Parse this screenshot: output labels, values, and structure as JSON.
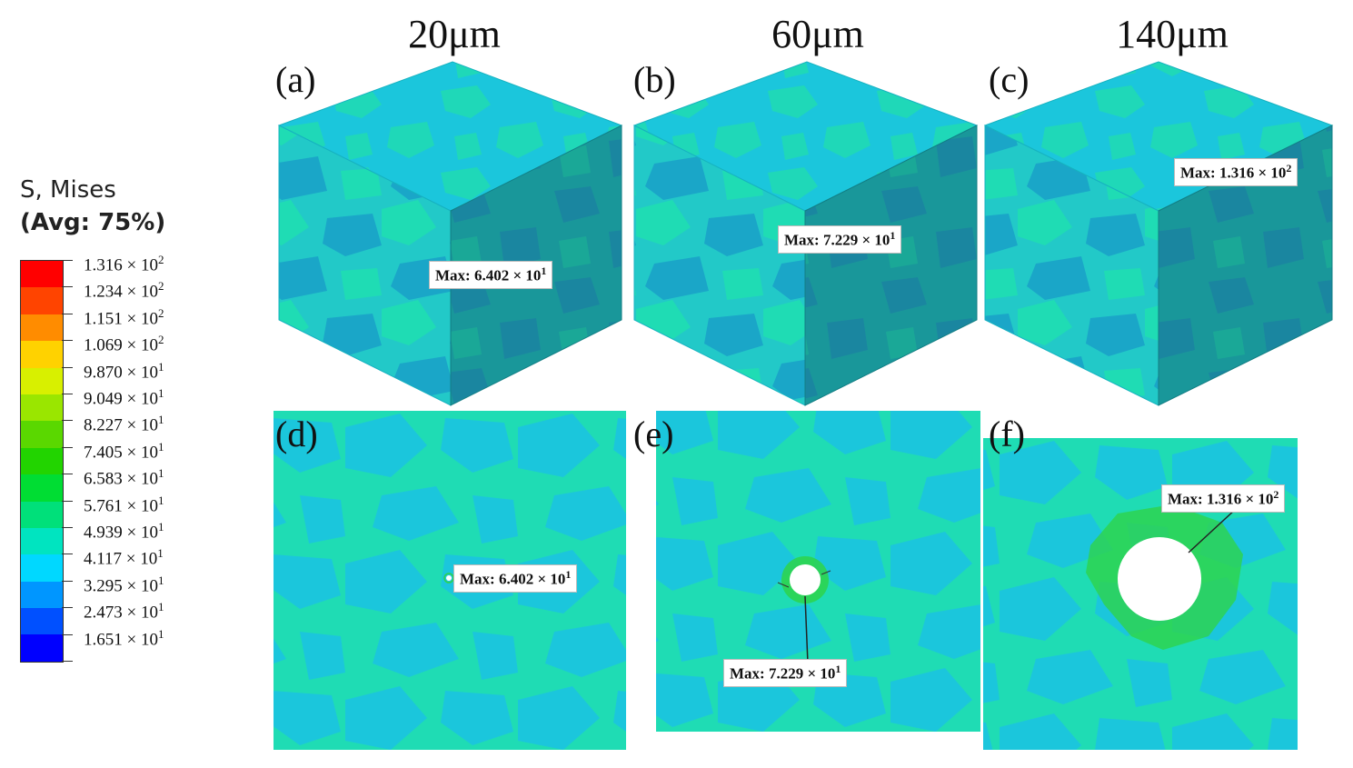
{
  "legend": {
    "title_line1": "S, Mises",
    "title_line2": "(Avg: 75%)",
    "entries": [
      {
        "mantissa": "1.316",
        "exp": "2",
        "color": "#ff0000"
      },
      {
        "mantissa": "1.234",
        "exp": "2",
        "color": "#ff4400"
      },
      {
        "mantissa": "1.151",
        "exp": "2",
        "color": "#ff8c00"
      },
      {
        "mantissa": "1.069",
        "exp": "2",
        "color": "#ffd200"
      },
      {
        "mantissa": "9.870",
        "exp": "1",
        "color": "#d8f000"
      },
      {
        "mantissa": "9.049",
        "exp": "1",
        "color": "#9ae600"
      },
      {
        "mantissa": "8.227",
        "exp": "1",
        "color": "#5ad800"
      },
      {
        "mantissa": "7.405",
        "exp": "1",
        "color": "#22d400"
      },
      {
        "mantissa": "6.583",
        "exp": "1",
        "color": "#00dd33"
      },
      {
        "mantissa": "5.761",
        "exp": "1",
        "color": "#00e07a"
      },
      {
        "mantissa": "4.939",
        "exp": "1",
        "color": "#00e4c0"
      },
      {
        "mantissa": "4.117",
        "exp": "1",
        "color": "#00d8ff"
      },
      {
        "mantissa": "3.295",
        "exp": "1",
        "color": "#0096ff"
      },
      {
        "mantissa": "2.473",
        "exp": "1",
        "color": "#0050ff"
      },
      {
        "mantissa": "1.651",
        "exp": "1",
        "color": "#0000ff"
      }
    ]
  },
  "columns": [
    "20μm",
    "60μm",
    "140μm"
  ],
  "panels": {
    "a": {
      "label": "(a)",
      "max_mantissa": "6.402",
      "max_exp": "1"
    },
    "b": {
      "label": "(b)",
      "max_mantissa": "7.229",
      "max_exp": "1"
    },
    "c": {
      "label": "(c)",
      "max_mantissa": "1.316",
      "max_exp": "2"
    },
    "d": {
      "label": "(d)",
      "max_mantissa": "6.402",
      "max_exp": "1"
    },
    "e": {
      "label": "(e)",
      "max_mantissa": "7.229",
      "max_exp": "1"
    },
    "f": {
      "label": "(f)",
      "max_mantissa": "1.316",
      "max_exp": "2"
    }
  },
  "max_prefix": "Max: ",
  "times_sign": "×",
  "base": "10",
  "colors": {
    "grain_light": "#1fdcb4",
    "grain_cyan": "#1bc6dc",
    "grain_dark": "#199d99",
    "grain_dark_alt": "#1a8ea0",
    "hole_ring": "#2ed34a"
  }
}
